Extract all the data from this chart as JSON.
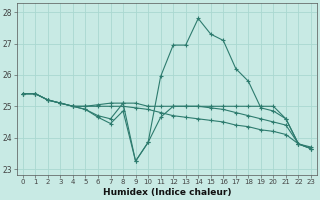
{
  "title": "",
  "xlabel": "Humidex (Indice chaleur)",
  "xlim": [
    -0.5,
    23.5
  ],
  "ylim": [
    22.8,
    28.3
  ],
  "yticks": [
    23,
    24,
    25,
    26,
    27,
    28
  ],
  "xticks": [
    0,
    1,
    2,
    3,
    4,
    5,
    6,
    7,
    8,
    9,
    10,
    11,
    12,
    13,
    14,
    15,
    16,
    17,
    18,
    19,
    20,
    21,
    22,
    23
  ],
  "bg_color": "#c8eae4",
  "line_color": "#2d7b6e",
  "grid_color": "#aad8d0",
  "lines": [
    {
      "x": [
        0,
        1,
        2,
        3,
        4,
        5,
        6,
        7,
        8,
        9,
        10,
        11,
        12,
        13,
        14,
        15,
        16,
        17,
        18,
        19,
        20,
        21,
        22,
        23
      ],
      "y": [
        25.4,
        25.4,
        25.2,
        25.1,
        25.0,
        24.9,
        24.7,
        24.6,
        25.1,
        23.25,
        23.85,
        25.95,
        26.95,
        26.95,
        27.8,
        27.3,
        27.1,
        26.2,
        25.8,
        24.95,
        24.85,
        24.6,
        23.8,
        23.7
      ]
    },
    {
      "x": [
        0,
        1,
        2,
        3,
        4,
        5,
        6,
        7,
        8,
        9,
        10,
        11,
        12,
        13,
        14,
        15,
        16,
        17,
        18,
        19,
        20,
        21,
        22,
        23
      ],
      "y": [
        25.4,
        25.4,
        25.2,
        25.1,
        25.0,
        24.9,
        24.65,
        24.45,
        24.85,
        23.25,
        23.85,
        24.65,
        25.0,
        25.0,
        25.0,
        25.0,
        25.0,
        25.0,
        25.0,
        25.0,
        25.0,
        24.6,
        23.8,
        23.65
      ]
    },
    {
      "x": [
        0,
        1,
        2,
        3,
        4,
        5,
        6,
        7,
        8,
        9,
        10,
        11,
        12,
        13,
        14,
        15,
        16,
        17,
        18,
        19,
        20,
        21,
        22,
        23
      ],
      "y": [
        25.4,
        25.4,
        25.2,
        25.1,
        25.0,
        25.0,
        25.05,
        25.1,
        25.1,
        25.1,
        25.0,
        25.0,
        25.0,
        25.0,
        25.0,
        24.95,
        24.9,
        24.8,
        24.7,
        24.6,
        24.5,
        24.4,
        23.8,
        23.65
      ]
    },
    {
      "x": [
        0,
        1,
        2,
        3,
        4,
        5,
        6,
        7,
        8,
        9,
        10,
        11,
        12,
        13,
        14,
        15,
        16,
        17,
        18,
        19,
        20,
        21,
        22,
        23
      ],
      "y": [
        25.4,
        25.4,
        25.2,
        25.1,
        25.0,
        25.0,
        25.0,
        25.0,
        25.0,
        24.95,
        24.9,
        24.8,
        24.7,
        24.65,
        24.6,
        24.55,
        24.5,
        24.4,
        24.35,
        24.25,
        24.2,
        24.1,
        23.8,
        23.65
      ]
    }
  ]
}
